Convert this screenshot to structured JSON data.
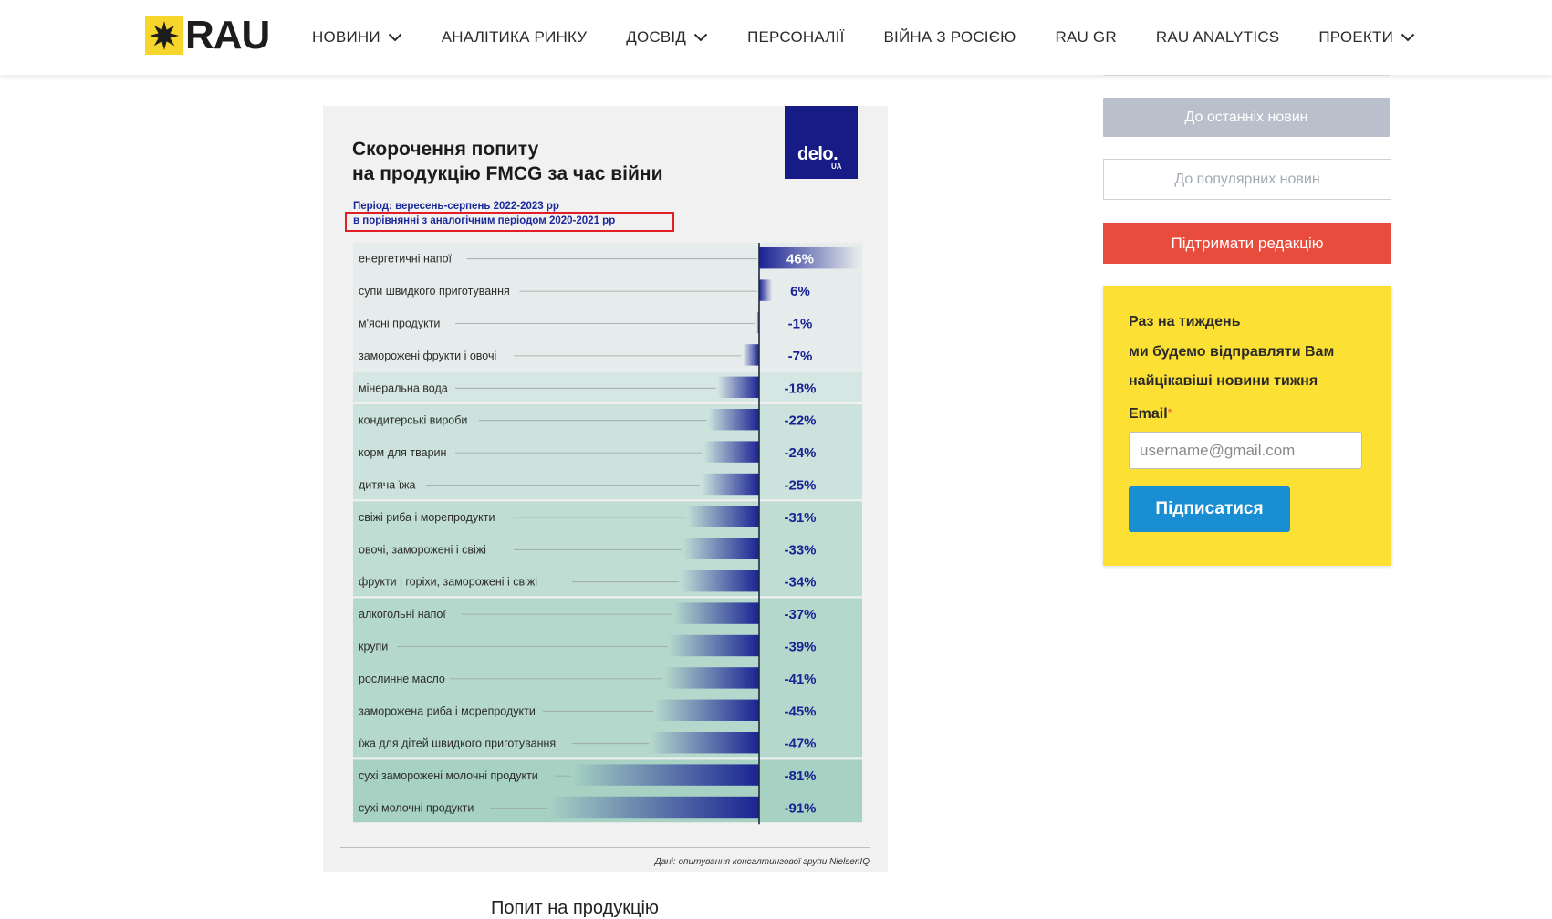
{
  "header": {
    "logo_text": "RAU",
    "nav": [
      {
        "label": "НОВИНИ",
        "has_dropdown": true
      },
      {
        "label": "АНАЛІТИКА РИНКУ",
        "has_dropdown": false
      },
      {
        "label": "ДОСВІД",
        "has_dropdown": true
      },
      {
        "label": "ПЕРСОНАЛІЇ",
        "has_dropdown": false
      },
      {
        "label": "ВІЙНА З РОСІЄЮ",
        "has_dropdown": false
      },
      {
        "label": "RAU GR",
        "has_dropdown": false
      },
      {
        "label": "RAU ANALYTICS",
        "has_dropdown": false
      },
      {
        "label": "ПРОЕКТИ",
        "has_dropdown": true
      }
    ],
    "icons": {
      "logo": "rau-star-logo-icon",
      "dropdown": "chevron-down-icon"
    }
  },
  "infographic": {
    "title_line1": "Скорочення попиту",
    "title_line2": "на продукцію FMCG за час війни",
    "brand": "delo.",
    "brand_suffix": "UA",
    "period": "Період: вересень-серпень 2022-2023 рр",
    "comparison": "в порівнянні з аналогічним періодом 2020-2021 рр",
    "source": "Дані: опитування консалтингової групи NielsenIQ"
  },
  "chart_data": {
    "type": "bar",
    "orientation": "horizontal",
    "title": "Скорочення попиту на продукцію FMCG за час війни",
    "categories": [
      "енергетичні напої",
      "супи швидкого приготування",
      "м'ясні продукти",
      "заморожені фрукти і овочі",
      "мінеральна вода",
      "кондитерські вироби",
      "корм для тварин",
      "дитяча їжа",
      "свіжі риба і морепродукти",
      "овочі, заморожені і свіжі",
      "фрукти і горіхи, заморожені і свіжі",
      "алкогольні напої",
      "крупи",
      "рослинне масло",
      "заморожена риба і морепродукти",
      "їжа для дітей швидкого приготування",
      "сухі заморожені молочні продукти",
      "сухі молочні продукти"
    ],
    "values": [
      46,
      6,
      -1,
      -7,
      -18,
      -22,
      -24,
      -25,
      -31,
      -33,
      -34,
      -37,
      -39,
      -41,
      -45,
      -47,
      -81,
      -91
    ],
    "labels": [
      "46%",
      "6%",
      "-1%",
      "-7%",
      "-18%",
      "-22%",
      "-24%",
      "-25%",
      "-31%",
      "-33%",
      "-34%",
      "-37%",
      "-39%",
      "-41%",
      "-45%",
      "-47%",
      "-81%",
      "-91%"
    ],
    "unit": "%",
    "group_sizes": [
      4,
      1,
      3,
      3,
      5,
      2
    ],
    "colors": {
      "bar": "#1a2393",
      "groups": [
        "#e6eceb",
        "#d6e7e3",
        "#cbe3dc",
        "#c0ddd4",
        "#b4d8cc",
        "#a6d1c3"
      ]
    }
  },
  "below_article_text": "Попит на продукцію",
  "sidebar": {
    "latest_button": "До останніх новин",
    "popular_button": "До популярних новин",
    "support_button": "Підтримати редакцію",
    "newsletter": {
      "line1": "Раз на тиждень",
      "line2": "ми будемо відправляти Вам",
      "line3": "найцікавіші новини тижня",
      "email_label": "Email",
      "required_mark": "*",
      "email_placeholder": "username@gmail.com",
      "email_value": "",
      "submit_label": "Підписатися"
    }
  }
}
